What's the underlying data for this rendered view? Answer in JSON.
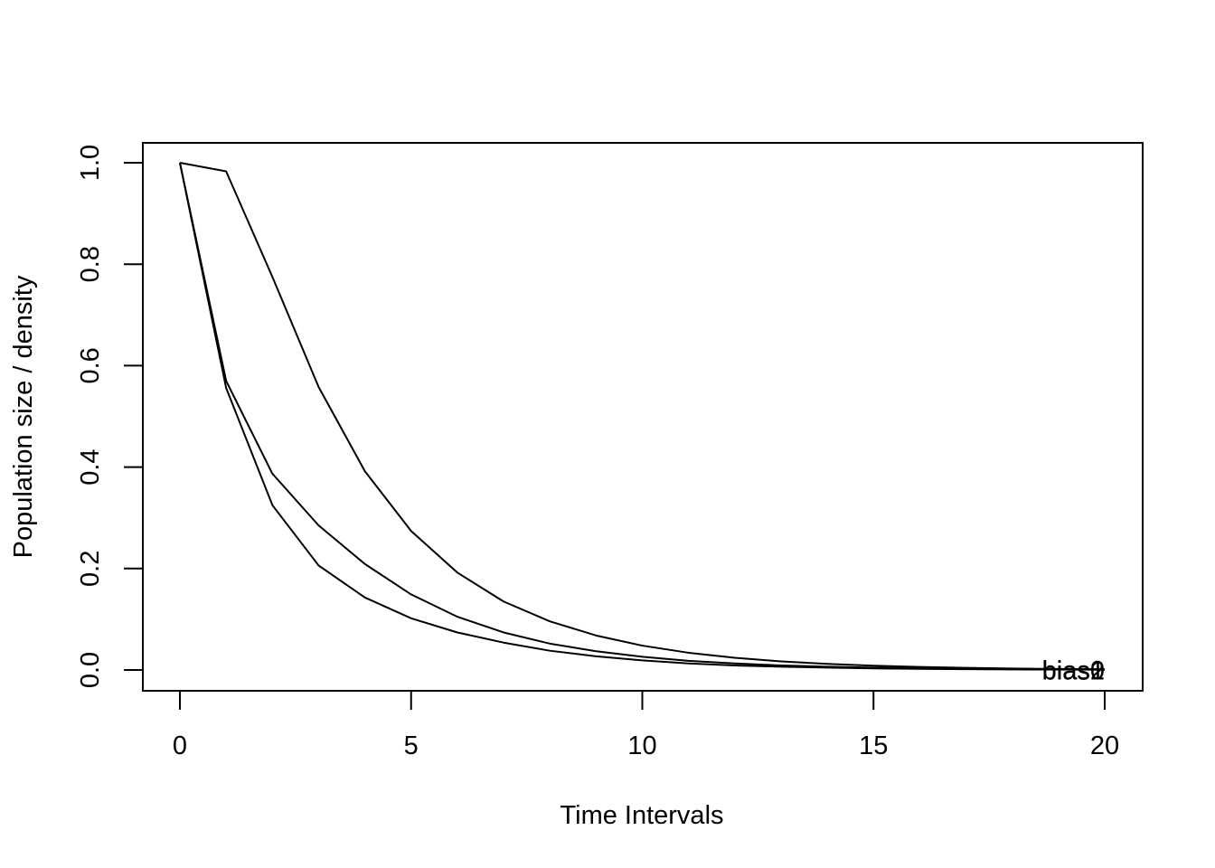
{
  "chart_data": {
    "type": "line",
    "title": "",
    "xlabel": "Time Intervals",
    "ylabel": "Population size / density",
    "xlim": [
      0,
      20
    ],
    "ylim": [
      0,
      1
    ],
    "x_ticks": [
      "0",
      "5",
      "10",
      "15",
      "20"
    ],
    "y_ticks": [
      "0.0",
      "0.2",
      "0.4",
      "0.6",
      "0.8",
      "1.0"
    ],
    "grid": false,
    "legend": "none",
    "line_color": "#000000",
    "x": [
      0,
      1,
      2,
      3,
      4,
      5,
      6,
      7,
      8,
      9,
      10,
      11,
      12,
      13,
      14,
      15,
      16,
      17,
      18,
      19,
      20
    ],
    "series": [
      {
        "end_label": "bias0",
        "values": [
          1.0,
          0.983,
          0.775,
          0.558,
          0.392,
          0.274,
          0.192,
          0.135,
          0.096,
          0.068,
          0.048,
          0.034,
          0.024,
          0.017,
          0.012,
          0.0085,
          0.006,
          0.0042,
          0.003,
          0.002,
          0.0015
        ]
      },
      {
        "end_label": "bias1",
        "values": [
          1.0,
          0.57,
          0.387,
          0.285,
          0.209,
          0.149,
          0.105,
          0.074,
          0.052,
          0.037,
          0.026,
          0.018,
          0.013,
          0.009,
          0.0065,
          0.0046,
          0.0032,
          0.0023,
          0.0016,
          0.0011,
          0.0008
        ]
      },
      {
        "end_label": "bias2",
        "values": [
          1.0,
          0.556,
          0.325,
          0.206,
          0.143,
          0.102,
          0.074,
          0.054,
          0.038,
          0.027,
          0.019,
          0.013,
          0.009,
          0.0065,
          0.0046,
          0.0032,
          0.0023,
          0.0016,
          0.0011,
          0.0008,
          0.0005
        ]
      }
    ]
  }
}
